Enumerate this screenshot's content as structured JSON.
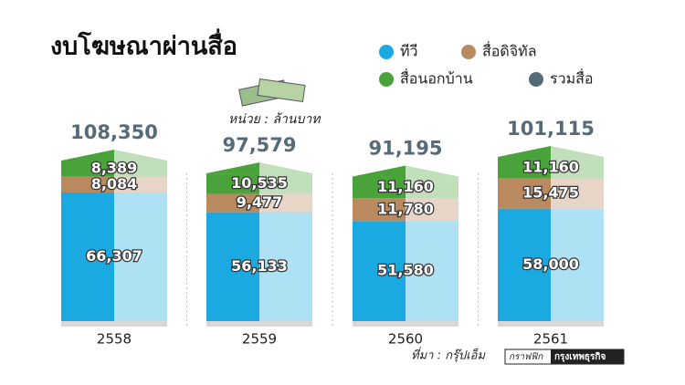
{
  "chart_data": {
    "type": "bar",
    "stacked": true,
    "title": "งบโฆษณาผ่านสื่อ",
    "subtitle": "หน่วย : ล้านบาท",
    "source": "ที่มา : กรุ๊ปเอ็ม",
    "credit": [
      "กราฟฟิก",
      "กรุงเทพธุรกิจ"
    ],
    "categories": [
      "2558",
      "2559",
      "2560",
      "2561"
    ],
    "series": [
      {
        "name": "ทีวี",
        "color": "#1aa9e0",
        "values": [
          66307,
          56133,
          51580,
          58000
        ],
        "value_labels": [
          "66,307",
          "56,133",
          "51,580",
          "58,000"
        ]
      },
      {
        "name": "สื่อดิจิทัล",
        "color": "#b98a60",
        "values": [
          8084,
          9477,
          11780,
          15475
        ],
        "value_labels": [
          "8,084",
          "9,477",
          "11,780",
          "15,475"
        ]
      },
      {
        "name": "สื่อนอกบ้าน",
        "color": "#4aa23a",
        "values": [
          8389,
          10535,
          11160,
          11160
        ],
        "value_labels": [
          "8,389",
          "10,535",
          "11,160",
          "11,160"
        ]
      }
    ],
    "totals": {
      "name": "รวมสื่อ",
      "color": "#556b78",
      "values": [
        108350,
        97579,
        91195,
        101115
      ],
      "value_labels": [
        "108,350",
        "97,579",
        "91,195",
        "101,115"
      ]
    }
  }
}
